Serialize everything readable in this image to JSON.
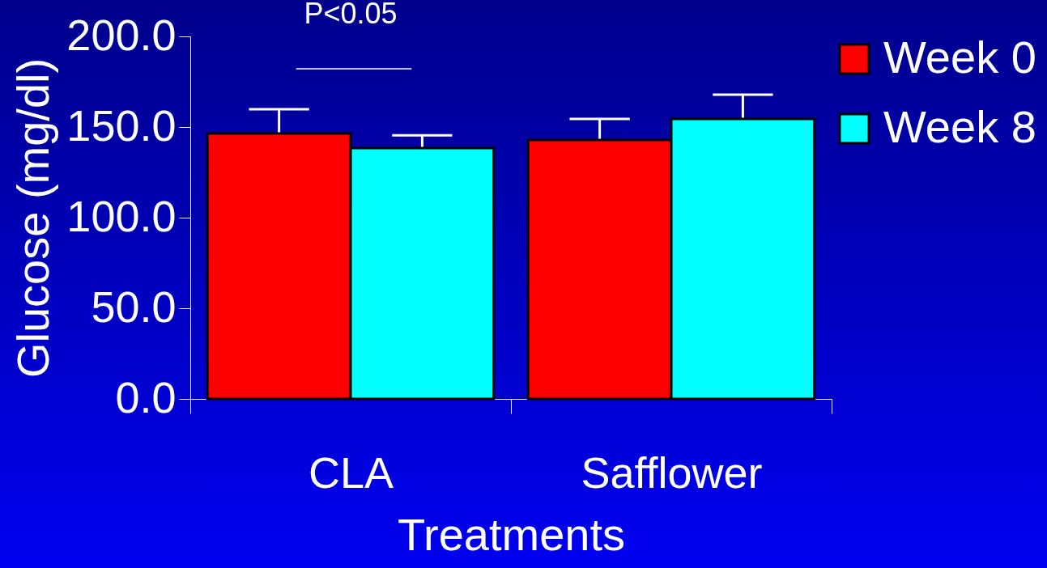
{
  "chart_data": {
    "type": "bar",
    "xlabel": "Treatments",
    "ylabel": "Glucose (mg/dl)",
    "categories": [
      "CLA",
      "Safflower"
    ],
    "series": [
      {
        "name": "Week 0",
        "color": "#ff0000",
        "values": [
          146.4,
          142.9
        ],
        "errors": [
          13.4,
          11.6
        ]
      },
      {
        "name": "Week 8",
        "color": "#00ffff",
        "values": [
          138.4,
          154.5
        ],
        "errors": [
          7,
          13.4
        ]
      }
    ],
    "ylim": [
      0,
      200
    ],
    "yticks": [
      {
        "value": 0,
        "label": "0.0"
      },
      {
        "value": 50,
        "label": "50.0"
      },
      {
        "value": 100,
        "label": "100.0"
      },
      {
        "value": 150,
        "label": "150.0"
      },
      {
        "value": 200,
        "label": "200.0"
      }
    ],
    "grid": false,
    "legend": "right",
    "annotations": [
      "P<0.05"
    ]
  }
}
